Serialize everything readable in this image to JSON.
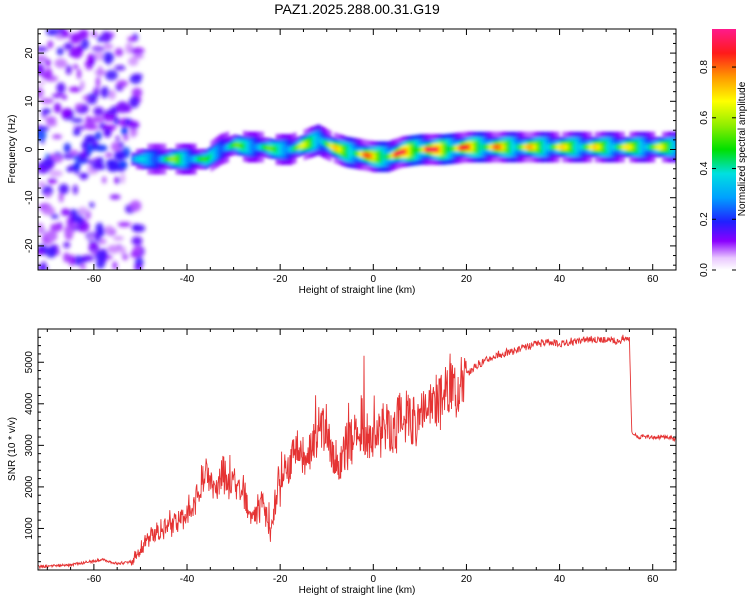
{
  "title": "PAZ1.2025.288.00.31.G19",
  "chart_data": [
    {
      "type": "heatmap",
      "xlabel": "Height of straight line (km)",
      "ylabel": "Frequency (Hz)",
      "xlim": [
        -72,
        65
      ],
      "ylim": [
        -25,
        25
      ],
      "xticks": [
        -60,
        -40,
        -20,
        0,
        20,
        40,
        60
      ],
      "yticks": [
        -20,
        -10,
        0,
        10,
        20
      ],
      "ytick_labels": [
        "-20",
        "-10",
        "0",
        "10",
        "20"
      ],
      "colorbar": {
        "label": "Normalized spectral amplitude",
        "range": [
          0,
          0.95
        ],
        "ticks": [
          0.0,
          0.2,
          0.4,
          0.6,
          0.8
        ],
        "tick_labels": [
          "0.0",
          "0.2",
          "0.4",
          "0.6",
          "0.8"
        ]
      },
      "ridge": {
        "x": [
          -52,
          -48,
          -45,
          -42,
          -39,
          -36,
          -33,
          -30,
          -27,
          -24,
          -21,
          -18,
          -15,
          -12,
          -9,
          -6,
          -3,
          0,
          3,
          6,
          10,
          15,
          20,
          25,
          30,
          40,
          50,
          60,
          65
        ],
        "y": [
          -2,
          -2,
          -2,
          -2,
          -2,
          -2,
          0,
          1,
          0.5,
          0.5,
          0,
          0,
          1,
          2,
          0.5,
          -0.5,
          -1,
          -1.5,
          -1.5,
          -0.5,
          0,
          0,
          0.5,
          0.5,
          0.5,
          0.5,
          0.5,
          0.5,
          0.5
        ],
        "amplitude": [
          0.3,
          0.4,
          0.5,
          0.55,
          0.5,
          0.45,
          0.45,
          0.5,
          0.5,
          0.5,
          0.5,
          0.55,
          0.6,
          0.6,
          0.65,
          0.7,
          0.75,
          0.75,
          0.8,
          0.85,
          0.9,
          0.85,
          0.8,
          0.75,
          0.7,
          0.65,
          0.65,
          0.6,
          0.6
        ]
      }
    },
    {
      "type": "line",
      "xlabel": "Height of straight line (km)",
      "ylabel": "SNR (10 * v/v)",
      "xlim": [
        -72,
        65
      ],
      "ylim": [
        0,
        5800
      ],
      "xticks": [
        -60,
        -40,
        -20,
        0,
        20,
        40,
        60
      ],
      "yticks": [
        1000,
        2000,
        3000,
        4000,
        5000
      ],
      "color": "#e53333",
      "series": [
        {
          "x": [
            -72,
            -65,
            -58,
            -55,
            -52,
            -50,
            -47,
            -44,
            -41,
            -38,
            -36,
            -34,
            -32,
            -30,
            -28,
            -26,
            -24,
            -22,
            -20,
            -18,
            -16,
            -14,
            -12,
            -10,
            -8,
            -6,
            -4,
            -2,
            0,
            2,
            4,
            6,
            8,
            10,
            12,
            14,
            16,
            18,
            20,
            22,
            25,
            28,
            31,
            34,
            37,
            40,
            43,
            46,
            49,
            52,
            55,
            55.5,
            57,
            60,
            63,
            65
          ],
          "y": [
            80,
            120,
            250,
            150,
            200,
            500,
            900,
            1100,
            1200,
            1700,
            2300,
            1900,
            2400,
            2100,
            2000,
            1200,
            1600,
            900,
            2300,
            2600,
            2900,
            2700,
            3300,
            3400,
            2400,
            3000,
            3200,
            3400,
            3000,
            3500,
            3300,
            3700,
            3600,
            3800,
            4100,
            4000,
            4300,
            4500,
            4700,
            4900,
            5100,
            5200,
            5300,
            5400,
            5500,
            5450,
            5500,
            5550,
            5550,
            5500,
            5600,
            3300,
            3200,
            3200,
            3200,
            3150
          ]
        }
      ]
    }
  ]
}
